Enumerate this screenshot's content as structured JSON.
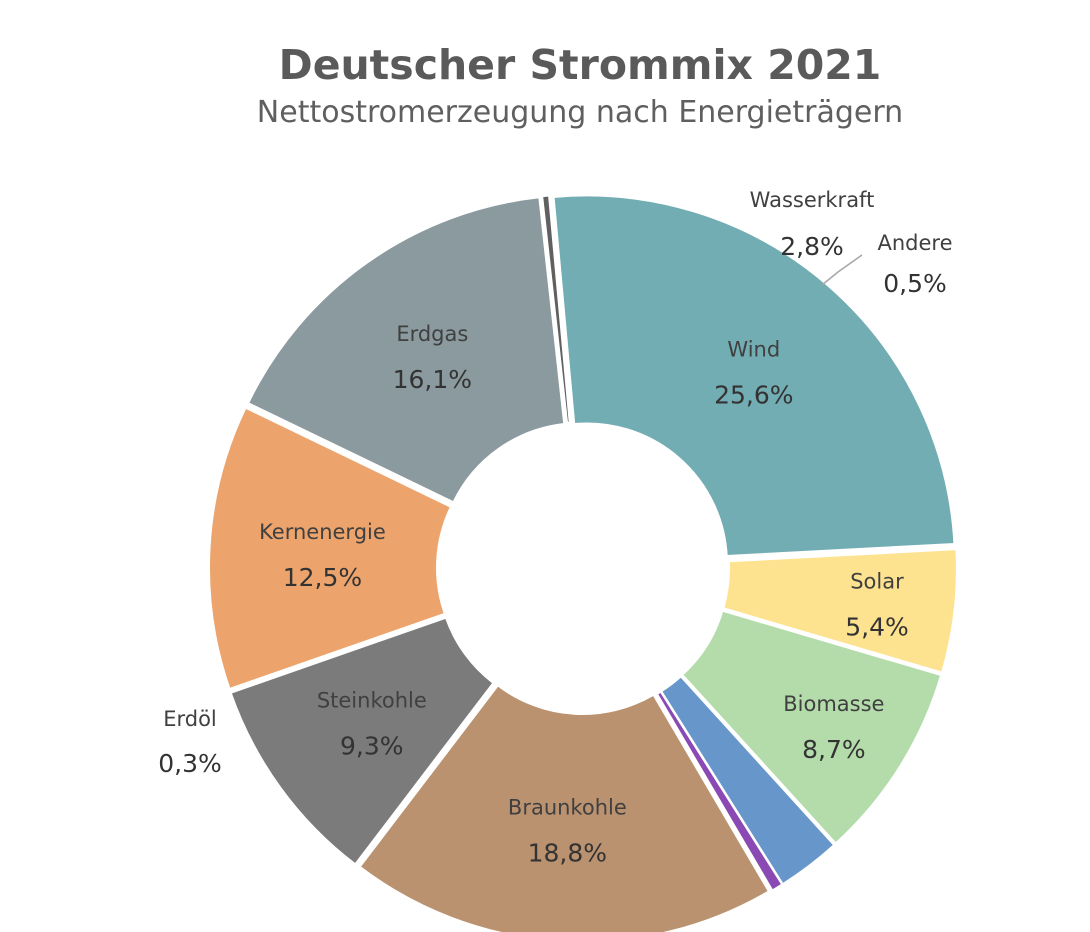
{
  "chart_data": {
    "type": "pie",
    "variant": "donut",
    "title": "Deutscher Strommix 2021",
    "subtitle": "Nettostromerzeugung nach Energieträgern",
    "unit": "%",
    "legend": "none",
    "slices": [
      {
        "name": "Wind",
        "value": 25.6,
        "label": "25,6%",
        "color": "#71adb3"
      },
      {
        "name": "Solar",
        "value": 5.4,
        "label": "5,4%",
        "color": "#fde28f"
      },
      {
        "name": "Biomasse",
        "value": 8.7,
        "label": "8,7%",
        "color": "#b3dcaa"
      },
      {
        "name": "Wasserkraft",
        "value": 2.8,
        "label": "2,8%",
        "color": "#6696ca"
      },
      {
        "name": "Andere",
        "value": 0.5,
        "label": "0,5%",
        "color": "#8a49b3"
      },
      {
        "name": "Braunkohle",
        "value": 18.8,
        "label": "18,8%",
        "color": "#bb926f"
      },
      {
        "name": "Steinkohle",
        "value": 9.3,
        "label": "9,3%",
        "color": "#7b7b7b"
      },
      {
        "name": "Kernenergie",
        "value": 12.5,
        "label": "12,5%",
        "color": "#eca46c"
      },
      {
        "name": "Erdgas",
        "value": 16.1,
        "label": "16,1%",
        "color": "#8a9a9f"
      },
      {
        "name": "Erdöl",
        "value": 0.3,
        "label": "0,3%",
        "color": "#606060"
      }
    ]
  }
}
